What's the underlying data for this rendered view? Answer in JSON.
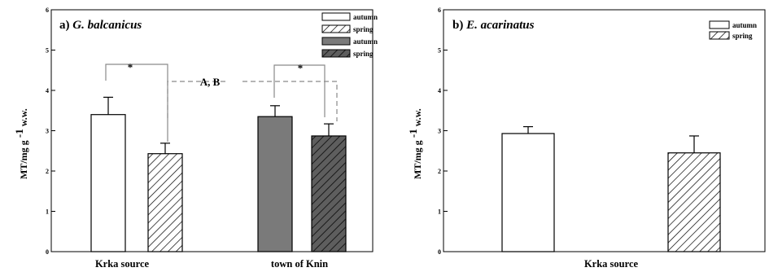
{
  "chart_data": [
    {
      "type": "bar",
      "panel_letter": "a)",
      "title": "G. balcanicus",
      "ylabel": "MT/mg g -1 w.w.",
      "ylim": [
        0,
        6
      ],
      "yticks": [
        0,
        1,
        2,
        3,
        4,
        5,
        6
      ],
      "groups": [
        "Krka source",
        "town of Knin"
      ],
      "series": [
        {
          "name": "autumn",
          "fill": "white",
          "values": [
            3.4,
            null
          ],
          "errors": [
            0.43,
            null
          ]
        },
        {
          "name": "spring",
          "fill": "hatch-white",
          "values": [
            2.43,
            null
          ],
          "errors": [
            0.26,
            null
          ]
        },
        {
          "name": "autumn",
          "fill": "gray",
          "values": [
            null,
            3.35
          ],
          "errors": [
            null,
            0.27
          ]
        },
        {
          "name": "spring",
          "fill": "hatch-gray",
          "values": [
            null,
            2.87
          ],
          "errors": [
            null,
            0.3
          ]
        }
      ],
      "annotations": [
        "*",
        "A, B",
        "*"
      ]
    },
    {
      "type": "bar",
      "panel_letter": "b)",
      "title": "E. acarinatus",
      "ylabel": "MT/mg g -1 w.w.",
      "ylim": [
        0,
        6
      ],
      "yticks": [
        0,
        1,
        2,
        3,
        4,
        5,
        6
      ],
      "groups": [
        "Krka source"
      ],
      "series": [
        {
          "name": "autumn",
          "fill": "white",
          "values": [
            2.93
          ],
          "errors": [
            0.17
          ]
        },
        {
          "name": "spring",
          "fill": "hatch-white",
          "values": [
            2.45
          ],
          "errors": [
            0.42
          ]
        }
      ],
      "annotations": []
    }
  ],
  "colors": {
    "gray": "#7a7a7a",
    "hatch_bg_gray": "#606060",
    "ink": "#000000",
    "dash": "#8a8a8a"
  }
}
